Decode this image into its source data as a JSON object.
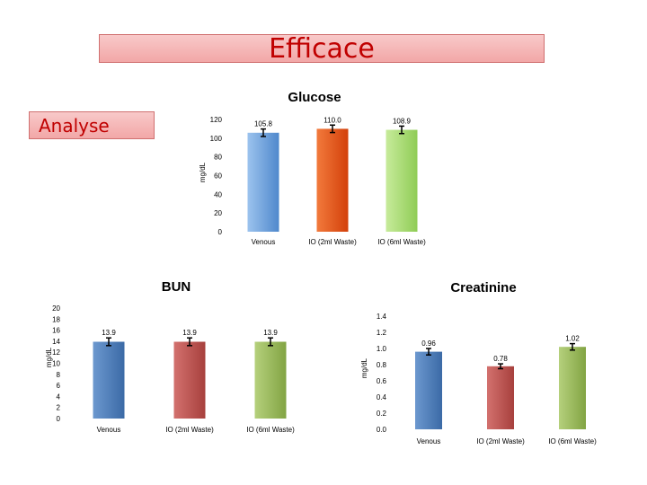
{
  "slide": {
    "title": "Efficace",
    "subtitle": "Analyse"
  },
  "chart_data": [
    {
      "type": "bar",
      "title": "Glucose",
      "ylabel": "mg/dL",
      "ylim": [
        0,
        120
      ],
      "yticks": [
        0,
        20,
        40,
        60,
        80,
        100,
        120
      ],
      "categories": [
        "Venous",
        "IO (2ml Waste)",
        "IO (6ml Waste)"
      ],
      "values": [
        105.8,
        110.0,
        108.9
      ],
      "labels": [
        "105.8",
        "110.0",
        "108.9"
      ],
      "errors": [
        4,
        4,
        4
      ],
      "colors": [
        "#6fa4df",
        "#e8531a",
        "#addf7a"
      ],
      "color_stops": [
        [
          "#9cc3ee",
          "#4f88cc"
        ],
        [
          "#f27a3c",
          "#d3400a"
        ],
        [
          "#c7eb9b",
          "#8fcc55"
        ]
      ]
    },
    {
      "type": "bar",
      "title": "BUN",
      "ylabel": "mg/dL",
      "ylim": [
        0,
        20
      ],
      "yticks": [
        0,
        2,
        4,
        6,
        8,
        10,
        12,
        14,
        16,
        18,
        20
      ],
      "categories": [
        "Venous",
        "IO (2ml Waste)",
        "IO (6ml Waste)"
      ],
      "values": [
        13.9,
        13.9,
        13.9
      ],
      "labels": [
        "13.9",
        "13.9",
        "13.9"
      ],
      "errors": [
        0.7,
        0.7,
        0.7
      ],
      "colors": [
        "#4a7ebb",
        "#c0504d",
        "#9bbb59"
      ],
      "color_stops": [
        [
          "#6c98cf",
          "#3b6aa6"
        ],
        [
          "#d3716e",
          "#a7403d"
        ],
        [
          "#b5d07c",
          "#82a443"
        ]
      ]
    },
    {
      "type": "bar",
      "title": "Creatinine",
      "ylabel": "mg/dL",
      "ylim": [
        0,
        1.4
      ],
      "yticks": [
        0,
        0.2,
        0.4,
        0.6,
        0.8,
        1.0,
        1.2,
        1.4
      ],
      "ytick_labels": [
        "0.0",
        "0.2",
        "0.4",
        "0.6",
        "0.8",
        "1.0",
        "1.2",
        "1.4"
      ],
      "categories": [
        "Venous",
        "IO (2ml Waste)",
        "IO (6ml Waste)"
      ],
      "values": [
        0.96,
        0.78,
        1.02
      ],
      "labels": [
        "0.96",
        "0.78",
        "1.02"
      ],
      "errors": [
        0.04,
        0.03,
        0.04
      ],
      "colors": [
        "#4a7ebb",
        "#c0504d",
        "#9bbb59"
      ],
      "color_stops": [
        [
          "#6c98cf",
          "#3b6aa6"
        ],
        [
          "#d3716e",
          "#a7403d"
        ],
        [
          "#b5d07c",
          "#82a443"
        ]
      ]
    }
  ]
}
